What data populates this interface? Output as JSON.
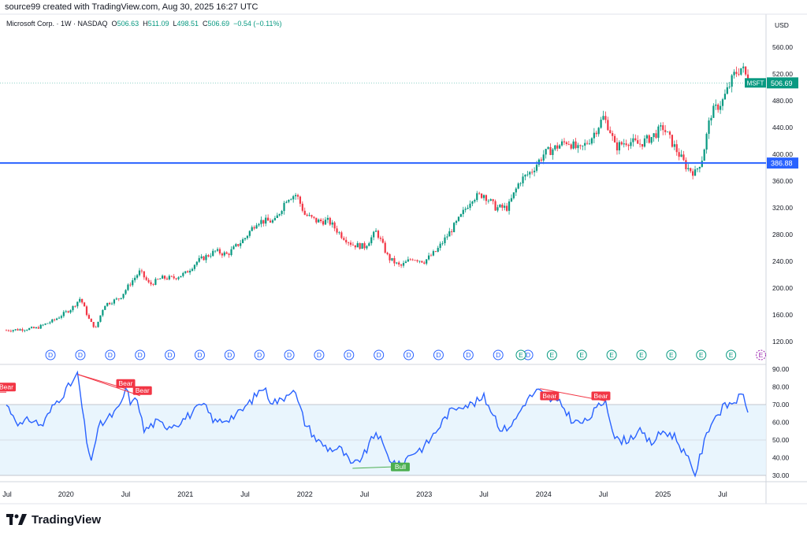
{
  "header": {
    "caption": "source99 created with TradingView.com, Aug 30, 2025 16:27 UTC"
  },
  "symbol": {
    "name": "Microsoft Corp. · 1W · NASDAQ",
    "open_label": "O",
    "open": "506.63",
    "high_label": "H",
    "high": "511.09",
    "low_label": "L",
    "low": "498.51",
    "close_label": "C",
    "close": "506.69",
    "change": "−0.54 (−0.11%)"
  },
  "price_axis": {
    "currency": "USD",
    "ticks": [
      "560.00",
      "520.00",
      "480.00",
      "440.00",
      "400.00",
      "360.00",
      "320.00",
      "280.00",
      "240.00",
      "200.00",
      "160.00",
      "120.00"
    ],
    "tick_values": [
      560,
      520,
      480,
      440,
      400,
      360,
      320,
      280,
      240,
      200,
      160,
      120
    ],
    "min": 100,
    "max": 580
  },
  "rsi_axis": {
    "ticks": [
      "90.00",
      "80.00",
      "70.00",
      "60.00",
      "50.00",
      "40.00",
      "30.00"
    ],
    "tick_values": [
      90,
      80,
      70,
      60,
      50,
      40,
      30
    ],
    "min": 25,
    "max": 92,
    "band_upper": 70,
    "band_lower": 30,
    "mid": 50
  },
  "time_axis": {
    "labels": [
      "Jul",
      "2020",
      "Jul",
      "2021",
      "Jul",
      "2022",
      "Jul",
      "2023",
      "Jul",
      "2024",
      "Jul",
      "2025",
      "Jul"
    ],
    "label_t": [
      2019.5,
      2020.0,
      2020.5,
      2021.0,
      2021.5,
      2022.0,
      2022.5,
      2023.0,
      2023.5,
      2024.0,
      2024.5,
      2025.0,
      2025.5
    ]
  },
  "price_labels": {
    "ticker": "MSFT",
    "last_price": "506.69",
    "last_value": 506.69,
    "level": "386.88",
    "level_value": 386.88
  },
  "events": {
    "dividend_letter": "D",
    "earnings_letter": "E",
    "dividend_t": [
      2019.87,
      2020.12,
      2020.37,
      2020.62,
      2020.87,
      2021.12,
      2021.37,
      2021.62,
      2021.87,
      2022.12,
      2022.37,
      2022.62,
      2022.87,
      2023.12,
      2023.37,
      2023.62,
      2023.87
    ],
    "earnings_t": [
      2023.81,
      2024.07,
      2024.32,
      2024.57,
      2024.82,
      2025.07,
      2025.32,
      2025.57,
      2025.82
    ]
  },
  "divergence_labels": {
    "bear": "Bear",
    "bull": "Bull"
  },
  "chart_data": [
    {
      "type": "candlestick",
      "title": "Microsoft Corp. · 1W · NASDAQ",
      "x_unit": "year",
      "x_range": [
        2019.5,
        2025.84
      ],
      "ylim": [
        100,
        580
      ],
      "anchors": [
        {
          "t": 2019.5,
          "p": 137
        },
        {
          "t": 2019.6,
          "p": 138
        },
        {
          "t": 2019.75,
          "p": 140
        },
        {
          "t": 2019.9,
          "p": 152
        },
        {
          "t": 2020.05,
          "p": 170
        },
        {
          "t": 2020.12,
          "p": 185
        },
        {
          "t": 2020.2,
          "p": 150
        },
        {
          "t": 2020.25,
          "p": 140
        },
        {
          "t": 2020.32,
          "p": 175
        },
        {
          "t": 2020.45,
          "p": 185
        },
        {
          "t": 2020.55,
          "p": 210
        },
        {
          "t": 2020.62,
          "p": 225
        },
        {
          "t": 2020.7,
          "p": 205
        },
        {
          "t": 2020.8,
          "p": 215
        },
        {
          "t": 2020.9,
          "p": 215
        },
        {
          "t": 2021.0,
          "p": 222
        },
        {
          "t": 2021.1,
          "p": 240
        },
        {
          "t": 2021.25,
          "p": 255
        },
        {
          "t": 2021.35,
          "p": 250
        },
        {
          "t": 2021.5,
          "p": 275
        },
        {
          "t": 2021.6,
          "p": 300
        },
        {
          "t": 2021.75,
          "p": 300
        },
        {
          "t": 2021.85,
          "p": 335
        },
        {
          "t": 2021.93,
          "p": 340
        },
        {
          "t": 2022.0,
          "p": 310
        },
        {
          "t": 2022.1,
          "p": 300
        },
        {
          "t": 2022.2,
          "p": 300
        },
        {
          "t": 2022.3,
          "p": 280
        },
        {
          "t": 2022.4,
          "p": 265
        },
        {
          "t": 2022.5,
          "p": 262
        },
        {
          "t": 2022.6,
          "p": 285
        },
        {
          "t": 2022.7,
          "p": 245
        },
        {
          "t": 2022.8,
          "p": 232
        },
        {
          "t": 2022.9,
          "p": 245
        },
        {
          "t": 2023.0,
          "p": 240
        },
        {
          "t": 2023.1,
          "p": 255
        },
        {
          "t": 2023.2,
          "p": 280
        },
        {
          "t": 2023.3,
          "p": 305
        },
        {
          "t": 2023.4,
          "p": 335
        },
        {
          "t": 2023.5,
          "p": 340
        },
        {
          "t": 2023.6,
          "p": 320
        },
        {
          "t": 2023.7,
          "p": 320
        },
        {
          "t": 2023.8,
          "p": 360
        },
        {
          "t": 2023.9,
          "p": 375
        },
        {
          "t": 2024.0,
          "p": 400
        },
        {
          "t": 2024.1,
          "p": 410
        },
        {
          "t": 2024.2,
          "p": 420
        },
        {
          "t": 2024.3,
          "p": 405
        },
        {
          "t": 2024.4,
          "p": 425
        },
        {
          "t": 2024.5,
          "p": 455
        },
        {
          "t": 2024.55,
          "p": 440
        },
        {
          "t": 2024.6,
          "p": 410
        },
        {
          "t": 2024.7,
          "p": 420
        },
        {
          "t": 2024.8,
          "p": 415
        },
        {
          "t": 2024.9,
          "p": 425
        },
        {
          "t": 2025.0,
          "p": 440
        },
        {
          "t": 2025.1,
          "p": 410
        },
        {
          "t": 2025.2,
          "p": 380
        },
        {
          "t": 2025.27,
          "p": 372
        },
        {
          "t": 2025.33,
          "p": 395
        },
        {
          "t": 2025.4,
          "p": 460
        },
        {
          "t": 2025.5,
          "p": 480
        },
        {
          "t": 2025.6,
          "p": 520
        },
        {
          "t": 2025.66,
          "p": 530
        },
        {
          "t": 2025.72,
          "p": 507
        }
      ],
      "last_close": 506.69,
      "horizontal_line": 386.88
    },
    {
      "type": "line",
      "title": "",
      "x_unit": "year",
      "ylim": [
        25,
        92
      ],
      "upper_band": 70,
      "lower_band": 30,
      "middle_line": 50,
      "anchors": [
        {
          "t": 2019.5,
          "v": 70
        },
        {
          "t": 2019.55,
          "v": 65
        },
        {
          "t": 2019.62,
          "v": 58
        },
        {
          "t": 2019.7,
          "v": 62
        },
        {
          "t": 2019.8,
          "v": 58
        },
        {
          "t": 2019.9,
          "v": 70
        },
        {
          "t": 2020.0,
          "v": 78
        },
        {
          "t": 2020.1,
          "v": 87
        },
        {
          "t": 2020.15,
          "v": 60
        },
        {
          "t": 2020.2,
          "v": 37
        },
        {
          "t": 2020.28,
          "v": 58
        },
        {
          "t": 2020.35,
          "v": 62
        },
        {
          "t": 2020.45,
          "v": 68
        },
        {
          "t": 2020.5,
          "v": 79
        },
        {
          "t": 2020.55,
          "v": 70
        },
        {
          "t": 2020.6,
          "v": 74
        },
        {
          "t": 2020.65,
          "v": 55
        },
        {
          "t": 2020.75,
          "v": 60
        },
        {
          "t": 2020.85,
          "v": 58
        },
        {
          "t": 2020.95,
          "v": 60
        },
        {
          "t": 2021.05,
          "v": 65
        },
        {
          "t": 2021.15,
          "v": 70
        },
        {
          "t": 2021.25,
          "v": 60
        },
        {
          "t": 2021.35,
          "v": 62
        },
        {
          "t": 2021.45,
          "v": 65
        },
        {
          "t": 2021.55,
          "v": 72
        },
        {
          "t": 2021.65,
          "v": 80
        },
        {
          "t": 2021.72,
          "v": 72
        },
        {
          "t": 2021.8,
          "v": 72
        },
        {
          "t": 2021.9,
          "v": 80
        },
        {
          "t": 2022.0,
          "v": 60
        },
        {
          "t": 2022.1,
          "v": 50
        },
        {
          "t": 2022.2,
          "v": 45
        },
        {
          "t": 2022.3,
          "v": 45
        },
        {
          "t": 2022.4,
          "v": 35
        },
        {
          "t": 2022.5,
          "v": 42
        },
        {
          "t": 2022.6,
          "v": 55
        },
        {
          "t": 2022.7,
          "v": 40
        },
        {
          "t": 2022.8,
          "v": 35
        },
        {
          "t": 2022.88,
          "v": 42
        },
        {
          "t": 2023.0,
          "v": 46
        },
        {
          "t": 2023.1,
          "v": 55
        },
        {
          "t": 2023.2,
          "v": 65
        },
        {
          "t": 2023.3,
          "v": 70
        },
        {
          "t": 2023.4,
          "v": 70
        },
        {
          "t": 2023.5,
          "v": 74
        },
        {
          "t": 2023.58,
          "v": 65
        },
        {
          "t": 2023.65,
          "v": 55
        },
        {
          "t": 2023.75,
          "v": 60
        },
        {
          "t": 2023.85,
          "v": 72
        },
        {
          "t": 2023.95,
          "v": 78
        },
        {
          "t": 2024.05,
          "v": 73
        },
        {
          "t": 2024.15,
          "v": 70
        },
        {
          "t": 2024.25,
          "v": 60
        },
        {
          "t": 2024.35,
          "v": 60
        },
        {
          "t": 2024.45,
          "v": 68
        },
        {
          "t": 2024.52,
          "v": 73
        },
        {
          "t": 2024.6,
          "v": 50
        },
        {
          "t": 2024.7,
          "v": 50
        },
        {
          "t": 2024.8,
          "v": 55
        },
        {
          "t": 2024.9,
          "v": 48
        },
        {
          "t": 2025.0,
          "v": 55
        },
        {
          "t": 2025.1,
          "v": 52
        },
        {
          "t": 2025.2,
          "v": 40
        },
        {
          "t": 2025.27,
          "v": 31
        },
        {
          "t": 2025.33,
          "v": 45
        },
        {
          "t": 2025.4,
          "v": 60
        },
        {
          "t": 2025.5,
          "v": 68
        },
        {
          "t": 2025.6,
          "v": 72
        },
        {
          "t": 2025.67,
          "v": 75
        },
        {
          "t": 2025.72,
          "v": 66
        }
      ],
      "divergences": [
        {
          "kind": "bear",
          "from": {
            "t": 2020.1,
            "v": 87
          },
          "to": {
            "t": 2020.5,
            "v": 79
          },
          "label_t": 2020.5
        },
        {
          "kind": "bear",
          "from": {
            "t": 2020.1,
            "v": 87
          },
          "to": {
            "t": 2020.62,
            "v": 75
          },
          "label_t": 2020.64
        },
        {
          "kind": "bear",
          "from": {
            "t": 2023.97,
            "v": 79
          },
          "to": {
            "t": 2024.52,
            "v": 72
          },
          "label_t": 2024.05
        },
        {
          "kind": "bear",
          "from": {
            "t": 2024.45,
            "v": 74
          },
          "to": {
            "t": 2024.52,
            "v": 72
          },
          "label_t": 2024.48
        },
        {
          "kind": "bull",
          "from": {
            "t": 2022.4,
            "v": 34
          },
          "to": {
            "t": 2022.8,
            "v": 35
          },
          "label_t": 2022.8
        },
        {
          "kind": "bear",
          "from": {
            "t": 2019.4,
            "v": 77
          },
          "to": {
            "t": 2019.5,
            "v": 77
          },
          "label_t": 2019.5
        }
      ]
    }
  ]
}
